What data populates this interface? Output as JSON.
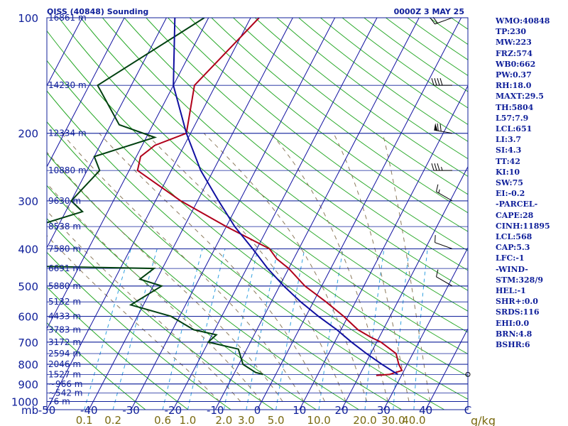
{
  "header": {
    "title": "OISS (40848) Sounding",
    "time": "0000Z  3 MAY 25"
  },
  "stats": [
    "WMO:40848",
    "TP:230",
    "MW:223",
    "FRZ:574",
    "WB0:662",
    "PW:0.37",
    "RH:18.0",
    "MAXT:29.5",
    "TH:5804",
    "L57:7.9",
    "LCL:651",
    "LI:3.7",
    "SI:4.3",
    "TT:42",
    "KI:10",
    "SW:75",
    "EI:-0.2",
    "-PARCEL-",
    "CAPE:28",
    "CINH:11895",
    "LCL:568",
    "CAP:5.3",
    "LFC:-1",
    "-WIND-",
    "STM:328/9",
    "HEL:-1",
    "SHR+:0.0",
    "SRDS:116",
    "EHI:0.0",
    "BRN:4.8",
    "BSHR:6"
  ],
  "chart_data": {
    "type": "line",
    "title": "OISS (40848) Sounding",
    "x_axis": {
      "label": "",
      "range": [
        -50,
        50
      ],
      "ticks": [
        -50,
        -40,
        -30,
        -20,
        -10,
        0,
        10,
        20,
        30,
        40,
        50
      ],
      "tick_labels": [
        "-50",
        "-40",
        "-30",
        "-20",
        "-10",
        "0",
        "10",
        "20",
        "30",
        "40",
        "C"
      ]
    },
    "y_axis": {
      "label": "mb",
      "scale": "log",
      "range": [
        1000,
        100
      ],
      "ticks": [
        100,
        200,
        300,
        400,
        500,
        600,
        700,
        800,
        900,
        1000
      ]
    },
    "mixing_ratio_axis": {
      "unit": "g/kg",
      "labels": [
        "0.1",
        "0.2",
        "0.6",
        "1.0",
        "2.0",
        "3.0",
        "5.0",
        "10.0",
        "20.0",
        "30.0",
        "40.0"
      ]
    },
    "height_levels": [
      {
        "p": 100,
        "label": "16861 m"
      },
      {
        "p": 150,
        "label": "14230 m"
      },
      {
        "p": 200,
        "label": "12334 m"
      },
      {
        "p": 250,
        "label": "10880 m"
      },
      {
        "p": 300,
        "label": "9630 m"
      },
      {
        "p": 350,
        "label": "8538 m"
      },
      {
        "p": 400,
        "label": "7580 m"
      },
      {
        "p": 450,
        "label": "6691 m"
      },
      {
        "p": 500,
        "label": "5880 m"
      },
      {
        "p": 550,
        "label": "5132 m"
      },
      {
        "p": 600,
        "label": "4433 m"
      },
      {
        "p": 650,
        "label": "3783 m"
      },
      {
        "p": 700,
        "label": "3172 m"
      },
      {
        "p": 750,
        "label": "2594 m"
      },
      {
        "p": 800,
        "label": "2046 m"
      },
      {
        "p": 850,
        "label": "1527 m"
      },
      {
        "p": 900,
        "label": "~966 m"
      },
      {
        "p": 950,
        "label": "~542 m"
      },
      {
        "p": 1000,
        "label": "76 m"
      }
    ],
    "series": [
      {
        "name": "Temperature",
        "color": "#b0001a",
        "points": [
          [
            100,
            -48
          ],
          [
            150,
            -55
          ],
          [
            200,
            -51
          ],
          [
            215,
            -57
          ],
          [
            230,
            -59
          ],
          [
            250,
            -58
          ],
          [
            300,
            -44
          ],
          [
            350,
            -30
          ],
          [
            400,
            -17
          ],
          [
            425,
            -14
          ],
          [
            450,
            -10
          ],
          [
            500,
            -4
          ],
          [
            550,
            3
          ],
          [
            600,
            9
          ],
          [
            650,
            14
          ],
          [
            680,
            18
          ],
          [
            700,
            21
          ],
          [
            750,
            26
          ],
          [
            800,
            28
          ],
          [
            830,
            29.5
          ],
          [
            850,
            27
          ],
          [
            855,
            24
          ]
        ]
      },
      {
        "name": "Dewpoint",
        "color": "#004010",
        "points": [
          [
            100,
            -61
          ],
          [
            150,
            -78
          ],
          [
            190,
            -68
          ],
          [
            205,
            -58
          ],
          [
            230,
            -70
          ],
          [
            250,
            -67
          ],
          [
            300,
            -70
          ],
          [
            320,
            -66
          ],
          [
            400,
            -90
          ],
          [
            440,
            -92
          ],
          [
            450,
            -42
          ],
          [
            480,
            -44
          ],
          [
            500,
            -38
          ],
          [
            560,
            -43
          ],
          [
            600,
            -32
          ],
          [
            650,
            -25
          ],
          [
            670,
            -19
          ],
          [
            700,
            -20
          ],
          [
            730,
            -12
          ],
          [
            800,
            -9
          ],
          [
            840,
            -5
          ],
          [
            850,
            -3
          ]
        ]
      },
      {
        "name": "Parcel",
        "color": "#1010a0",
        "points": [
          [
            100,
            -68
          ],
          [
            150,
            -60
          ],
          [
            200,
            -51
          ],
          [
            250,
            -43
          ],
          [
            300,
            -35
          ],
          [
            350,
            -28
          ],
          [
            400,
            -21
          ],
          [
            450,
            -15
          ],
          [
            500,
            -9
          ],
          [
            550,
            -3
          ],
          [
            600,
            3
          ],
          [
            650,
            9
          ],
          [
            700,
            14
          ],
          [
            750,
            19
          ],
          [
            800,
            24
          ],
          [
            850,
            29
          ]
        ]
      }
    ],
    "wind_barbs": [
      {
        "p": 100,
        "dir": 250,
        "spd": 20
      },
      {
        "p": 150,
        "dir": 270,
        "spd": 40
      },
      {
        "p": 200,
        "dir": 280,
        "spd": 70
      },
      {
        "p": 250,
        "dir": 270,
        "spd": 35
      },
      {
        "p": 300,
        "dir": 300,
        "spd": 15
      },
      {
        "p": 400,
        "dir": 290,
        "spd": 10
      },
      {
        "p": 500,
        "dir": 300,
        "spd": 10
      },
      {
        "p": 850,
        "dir": 0,
        "spd": 0
      }
    ]
  }
}
